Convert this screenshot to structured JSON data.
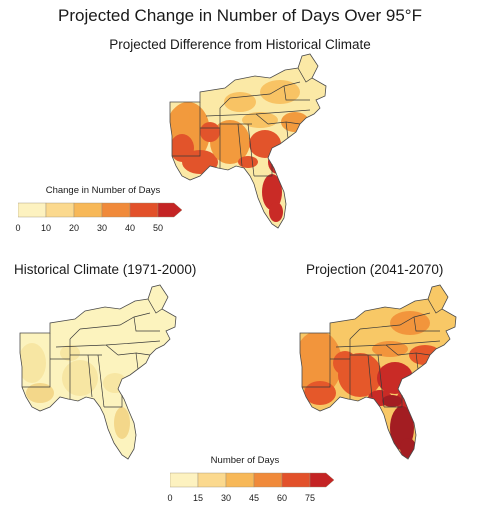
{
  "title": "Projected Change in Number of Days Over 95°F",
  "subtitle": "Projected Difference from Historical Climate",
  "maps": {
    "difference": {
      "colors": [
        "#fbe9a6",
        "#f8c364",
        "#f29a3d",
        "#e2542b",
        "#c92b26"
      ]
    },
    "historical": {
      "title": "Historical Climate (1971-2000)",
      "colors": [
        "#fcf3be",
        "#f7e6a3",
        "#f3d78a"
      ]
    },
    "projection": {
      "title": "Projection (2041-2070)",
      "colors": [
        "#f8c866",
        "#f2953c",
        "#e5582a",
        "#c92b26",
        "#a31d22"
      ]
    }
  },
  "legends": {
    "change": {
      "title": "Change in Number of Days",
      "ticks": [
        "0",
        "10",
        "20",
        "30",
        "40",
        "50"
      ],
      "colors": [
        "#fdf2c0",
        "#fbd98e",
        "#f7b858",
        "#f08a3a",
        "#e2512a",
        "#c42424"
      ]
    },
    "days": {
      "title": "Number of Days",
      "ticks": [
        "0",
        "15",
        "30",
        "45",
        "60",
        "75"
      ],
      "colors": [
        "#fdf2c0",
        "#fbd98e",
        "#f7b858",
        "#f08a3a",
        "#e2512a",
        "#c42424"
      ]
    }
  }
}
